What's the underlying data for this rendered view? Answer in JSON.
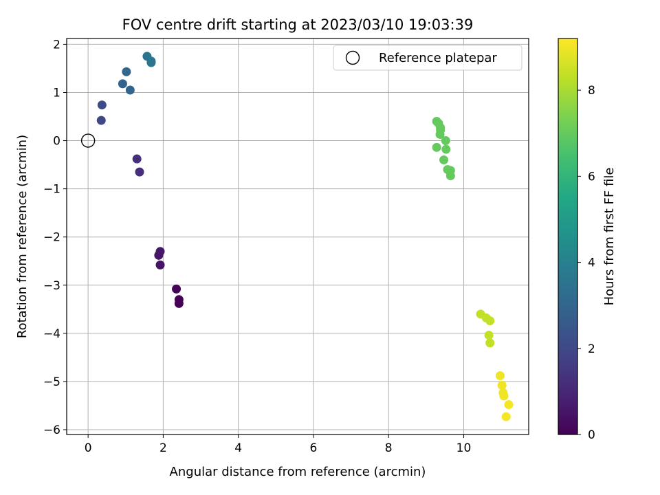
{
  "chart_data": {
    "type": "scatter",
    "title": "FOV centre drift starting at 2023/03/10 19:03:39",
    "xlabel": "Angular distance from reference (arcmin)",
    "ylabel": "Rotation from reference (arcmin)",
    "xlim": [
      -0.57,
      11.73
    ],
    "ylim": [
      -6.1,
      2.12
    ],
    "xticks": [
      0,
      2,
      4,
      6,
      8,
      10
    ],
    "yticks": [
      -6,
      -5,
      -4,
      -3,
      -2,
      -1,
      0,
      1,
      2
    ],
    "grid": true,
    "legend": {
      "placement": "top-right",
      "entries": [
        "Reference platepar"
      ]
    },
    "reference_point": {
      "x": 0,
      "y": 0
    },
    "colorbar": {
      "label": "Hours from first FF file",
      "range": [
        0,
        9.2
      ],
      "ticks": [
        0,
        2,
        4,
        6,
        8
      ],
      "colormap": "viridis"
    },
    "points": [
      {
        "x": 2.42,
        "y": -3.38,
        "hours": 0.0
      },
      {
        "x": 2.42,
        "y": -3.3,
        "hours": 0.05
      },
      {
        "x": 2.35,
        "y": -3.08,
        "hours": 0.1
      },
      {
        "x": 1.92,
        "y": -2.58,
        "hours": 0.5
      },
      {
        "x": 1.88,
        "y": -2.38,
        "hours": 0.55
      },
      {
        "x": 1.92,
        "y": -2.3,
        "hours": 0.6
      },
      {
        "x": 1.37,
        "y": -0.65,
        "hours": 1.2
      },
      {
        "x": 1.3,
        "y": -0.38,
        "hours": 1.25
      },
      {
        "x": 0.35,
        "y": 0.42,
        "hours": 2.0
      },
      {
        "x": 0.37,
        "y": 0.74,
        "hours": 2.05
      },
      {
        "x": 0.92,
        "y": 1.18,
        "hours": 2.9
      },
      {
        "x": 1.12,
        "y": 1.05,
        "hours": 2.95
      },
      {
        "x": 1.02,
        "y": 1.43,
        "hours": 3.0
      },
      {
        "x": 1.57,
        "y": 1.75,
        "hours": 3.5
      },
      {
        "x": 1.68,
        "y": 1.62,
        "hours": 3.55
      },
      {
        "x": 1.68,
        "y": 1.65,
        "hours": 3.6
      },
      {
        "x": 9.28,
        "y": 0.4,
        "hours": 7.0
      },
      {
        "x": 9.33,
        "y": 0.36,
        "hours": 7.0
      },
      {
        "x": 9.38,
        "y": 0.27,
        "hours": 7.0
      },
      {
        "x": 9.38,
        "y": 0.22,
        "hours": 7.0
      },
      {
        "x": 9.37,
        "y": 0.13,
        "hours": 7.0
      },
      {
        "x": 9.52,
        "y": 0.0,
        "hours": 7.0
      },
      {
        "x": 9.28,
        "y": -0.14,
        "hours": 7.0
      },
      {
        "x": 9.53,
        "y": -0.18,
        "hours": 7.0
      },
      {
        "x": 9.47,
        "y": -0.4,
        "hours": 7.0
      },
      {
        "x": 9.57,
        "y": -0.6,
        "hours": 7.0
      },
      {
        "x": 9.65,
        "y": -0.62,
        "hours": 7.0
      },
      {
        "x": 9.65,
        "y": -0.73,
        "hours": 7.0
      },
      {
        "x": 10.45,
        "y": -3.6,
        "hours": 8.35
      },
      {
        "x": 10.6,
        "y": -3.68,
        "hours": 8.35
      },
      {
        "x": 10.7,
        "y": -3.74,
        "hours": 8.35
      },
      {
        "x": 10.67,
        "y": -4.04,
        "hours": 8.35
      },
      {
        "x": 10.7,
        "y": -4.2,
        "hours": 8.35
      },
      {
        "x": 10.97,
        "y": -4.88,
        "hours": 9.0
      },
      {
        "x": 11.02,
        "y": -5.08,
        "hours": 9.0
      },
      {
        "x": 11.05,
        "y": -5.23,
        "hours": 9.0
      },
      {
        "x": 11.07,
        "y": -5.3,
        "hours": 9.0
      },
      {
        "x": 11.2,
        "y": -5.48,
        "hours": 9.05
      },
      {
        "x": 11.13,
        "y": -5.73,
        "hours": 9.05
      }
    ]
  }
}
